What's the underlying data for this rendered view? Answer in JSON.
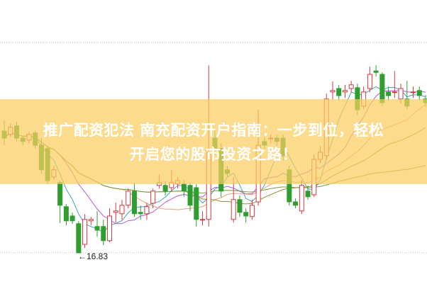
{
  "chart_data": {
    "type": "candlestick",
    "title": "",
    "min_label": "16.83",
    "min_marker": "←",
    "colors": {
      "up": "#d9363e",
      "down": "#2e9e2e",
      "grid": "#bbbbbb"
    },
    "moving_averages": [
      {
        "period": 5,
        "color": "#3fa7b5"
      },
      {
        "period": 10,
        "color": "#b45ad0"
      },
      {
        "period": 20,
        "color": "#f0a070"
      },
      {
        "period": 30,
        "color": "#9a8a30"
      },
      {
        "period": 60,
        "color": "#7aa040"
      }
    ],
    "candles_ochl": [
      [
        21.13,
        20.88,
        21.51,
        20.63
      ],
      [
        21.01,
        21.26,
        21.4,
        20.9
      ],
      [
        21.31,
        20.88,
        21.45,
        20.76
      ],
      [
        20.88,
        20.76,
        20.95,
        20.63
      ],
      [
        20.81,
        21.01,
        21.1,
        20.7
      ],
      [
        21.06,
        20.63,
        21.15,
        20.51
      ],
      [
        20.63,
        19.76,
        20.88,
        19.63
      ],
      [
        20.51,
        19.38,
        20.6,
        19.26
      ],
      [
        19.51,
        19.76,
        19.9,
        19.4
      ],
      [
        19.31,
        18.51,
        19.38,
        17.88
      ],
      [
        18.46,
        17.96,
        18.55,
        17.8
      ],
      [
        18.13,
        17.96,
        18.25,
        17.85
      ],
      [
        17.86,
        16.83,
        17.95,
        16.83
      ],
      [
        17.13,
        18.01,
        18.2,
        17.0
      ],
      [
        17.96,
        18.01,
        18.1,
        17.8
      ],
      [
        17.76,
        17.63,
        18.3,
        17.4
      ],
      [
        17.76,
        17.26,
        18.0,
        17.1
      ],
      [
        17.26,
        18.13,
        18.4,
        17.2
      ],
      [
        18.26,
        18.31,
        18.6,
        17.9
      ],
      [
        18.21,
        18.51,
        18.7,
        18.0
      ],
      [
        18.51,
        19.01,
        19.1,
        18.4
      ],
      [
        19.01,
        18.21,
        19.3,
        18.1
      ],
      [
        18.26,
        18.21,
        18.5,
        18.0
      ],
      [
        18.21,
        18.46,
        18.6,
        18.0
      ],
      [
        18.58,
        19.01,
        19.1,
        18.4
      ],
      [
        19.21,
        19.31,
        19.6,
        19.1
      ],
      [
        19.21,
        19.01,
        19.35,
        18.85
      ],
      [
        19.13,
        19.31,
        19.76,
        19.0
      ],
      [
        19.26,
        19.38,
        19.5,
        19.1
      ],
      [
        19.26,
        19.01,
        19.4,
        18.8
      ],
      [
        19.21,
        18.51,
        19.3,
        18.3
      ],
      [
        19.13,
        18.01,
        19.25,
        17.76
      ],
      [
        18.01,
        18.01,
        18.3,
        17.8
      ],
      [
        18.01,
        20.38,
        23.45,
        17.76
      ],
      [
        20.88,
        20.51,
        21.2,
        20.3
      ],
      [
        20.51,
        19.01,
        20.7,
        18.8
      ],
      [
        19.76,
        19.63,
        19.9,
        19.5
      ],
      [
        18.01,
        18.71,
        19.5,
        17.9
      ],
      [
        18.71,
        18.26,
        18.85,
        18.1
      ],
      [
        18.26,
        18.13,
        18.4,
        17.9
      ],
      [
        18.11,
        18.51,
        18.7,
        18.0
      ],
      [
        18.63,
        20.63,
        21.88,
        18.5
      ],
      [
        20.76,
        20.63,
        20.9,
        20.5
      ],
      [
        20.88,
        20.88,
        21.0,
        20.7
      ],
      [
        20.88,
        20.76,
        21.0,
        20.6
      ],
      [
        20.88,
        20.26,
        21.0,
        20.1
      ],
      [
        19.76,
        18.63,
        19.9,
        18.5
      ],
      [
        18.63,
        18.51,
        18.75,
        18.4
      ],
      [
        18.31,
        19.21,
        19.4,
        18.2
      ],
      [
        19.01,
        18.81,
        19.2,
        18.7
      ],
      [
        18.88,
        20.13,
        20.3,
        18.8
      ],
      [
        20.13,
        20.38,
        20.6,
        20.0
      ],
      [
        20.26,
        22.26,
        22.45,
        20.1
      ],
      [
        22.51,
        22.56,
        22.88,
        22.26
      ],
      [
        22.63,
        22.38,
        22.76,
        22.2
      ],
      [
        22.51,
        22.56,
        22.76,
        22.3
      ],
      [
        22.63,
        22.76,
        22.9,
        22.5
      ],
      [
        22.66,
        21.88,
        22.8,
        21.7
      ],
      [
        22.01,
        22.51,
        22.7,
        21.9
      ],
      [
        22.63,
        23.13,
        23.4,
        22.5
      ],
      [
        23.25,
        23.2,
        23.45,
        23.05
      ],
      [
        23.13,
        22.13,
        23.2,
        22.0
      ],
      [
        22.51,
        22.38,
        22.7,
        22.2
      ],
      [
        22.51,
        22.51,
        23.25,
        22.3
      ],
      [
        22.26,
        22.63,
        22.8,
        22.1
      ],
      [
        22.26,
        22.01,
        22.9,
        21.9
      ],
      [
        22.51,
        22.51,
        22.7,
        22.3
      ],
      [
        22.56,
        22.38,
        22.7,
        22.2
      ],
      [
        22.26,
        22.13,
        22.4,
        22.0
      ]
    ]
  },
  "banner": {
    "line1": "推广配资犯法 南充配资开户指南：一步到位，轻松",
    "line2": "开启您的股市投资之路！"
  }
}
